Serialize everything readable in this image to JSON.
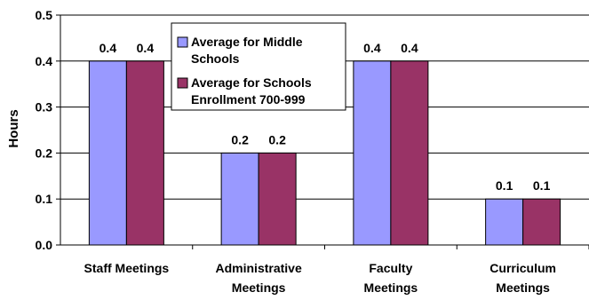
{
  "chart_data": {
    "type": "bar",
    "categories": [
      [
        "Staff Meetings"
      ],
      [
        "Administrative",
        "Meetings"
      ],
      [
        "Faculty",
        "Meetings"
      ],
      [
        "Curriculum",
        "Meetings"
      ]
    ],
    "series": [
      {
        "name": [
          "Average for Middle",
          "Schools"
        ],
        "color": "#9999ff",
        "values": [
          0.4,
          0.2,
          0.4,
          0.1
        ]
      },
      {
        "name": [
          "Average for Schools",
          "Enrollment 700-999"
        ],
        "color": "#993366",
        "values": [
          0.4,
          0.2,
          0.4,
          0.1
        ]
      }
    ],
    "data_labels": [
      [
        "0.4",
        "0.2",
        "0.4",
        "0.1"
      ],
      [
        "0.4",
        "0.2",
        "0.4",
        "0.1"
      ]
    ],
    "y_ticks": [
      "0.0",
      "0.1",
      "0.2",
      "0.3",
      "0.4",
      "0.5"
    ],
    "ylabel": "Hours",
    "xlabel": "",
    "title": "",
    "ylim": [
      0,
      0.5
    ],
    "grid": true,
    "legend_position": "top-center"
  }
}
